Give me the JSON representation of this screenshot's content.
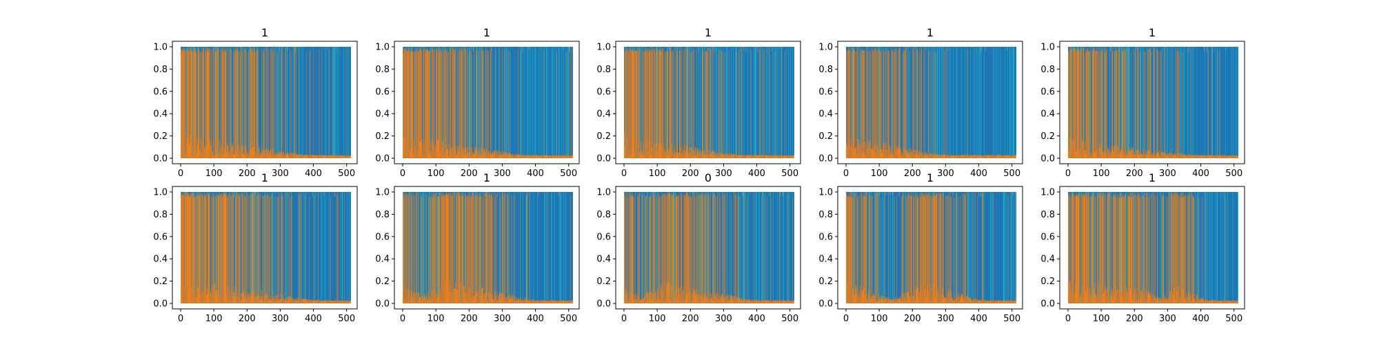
{
  "chart_data": [
    {
      "type": "area",
      "title": "1",
      "x_range": [
        0,
        511
      ],
      "ylim": [
        0,
        1
      ],
      "xticks": [
        0,
        100,
        200,
        300,
        400,
        500
      ],
      "yticks": [
        0.0,
        0.2,
        0.4,
        0.6,
        0.8,
        1.0
      ],
      "series": [
        {
          "color": "#1f77b4",
          "segments": [
            [
              0,
              0.08
            ],
            [
              370,
              0.92
            ],
            [
              511,
              0.95
            ]
          ]
        },
        {
          "color": "#ff7f0e",
          "segments": [
            [
              0,
              0.85
            ],
            [
              370,
              0.06
            ],
            [
              511,
              0.03
            ]
          ]
        }
      ]
    },
    {
      "type": "area",
      "title": "1",
      "x_range": [
        0,
        511
      ],
      "ylim": [
        0,
        1
      ],
      "xticks": [
        0,
        100,
        200,
        300,
        400,
        500
      ],
      "yticks": [
        0.0,
        0.2,
        0.4,
        0.6,
        0.8,
        1.0
      ],
      "series": [
        {
          "color": "#1f77b4",
          "segments": [
            [
              0,
              0.1
            ],
            [
              360,
              0.93
            ],
            [
              511,
              0.95
            ]
          ]
        },
        {
          "color": "#ff7f0e",
          "segments": [
            [
              0,
              0.82
            ],
            [
              360,
              0.05
            ],
            [
              511,
              0.03
            ]
          ]
        }
      ]
    },
    {
      "type": "area",
      "title": "1",
      "x_range": [
        0,
        511
      ],
      "ylim": [
        0,
        1
      ],
      "xticks": [
        0,
        100,
        200,
        300,
        400,
        500
      ],
      "yticks": [
        0.0,
        0.2,
        0.4,
        0.6,
        0.8,
        1.0
      ],
      "series": [
        {
          "color": "#1f77b4",
          "segments": [
            [
              0,
              0.12
            ],
            [
              340,
              0.92
            ],
            [
              511,
              0.95
            ]
          ]
        },
        {
          "color": "#ff7f0e",
          "segments": [
            [
              0,
              0.8
            ],
            [
              340,
              0.06
            ],
            [
              511,
              0.03
            ]
          ]
        }
      ]
    },
    {
      "type": "area",
      "title": "1",
      "x_range": [
        0,
        511
      ],
      "ylim": [
        0,
        1
      ],
      "xticks": [
        0,
        100,
        200,
        300,
        400,
        500
      ],
      "yticks": [
        0.0,
        0.2,
        0.4,
        0.6,
        0.8,
        1.0
      ],
      "series": [
        {
          "color": "#1f77b4",
          "segments": [
            [
              0,
              0.15
            ],
            [
              280,
              0.9
            ],
            [
              511,
              0.92
            ]
          ]
        },
        {
          "color": "#ff7f0e",
          "segments": [
            [
              0,
              0.78
            ],
            [
              280,
              0.06
            ],
            [
              511,
              0.05
            ]
          ]
        }
      ]
    },
    {
      "type": "area",
      "title": "1",
      "x_range": [
        0,
        511
      ],
      "ylim": [
        0,
        1
      ],
      "xticks": [
        0,
        100,
        200,
        300,
        400,
        500
      ],
      "yticks": [
        0.0,
        0.2,
        0.4,
        0.6,
        0.8,
        1.0
      ],
      "series": [
        {
          "color": "#1f77b4",
          "segments": [
            [
              0,
              0.2
            ],
            [
              100,
              0.5
            ],
            [
              380,
              0.92
            ],
            [
              511,
              0.95
            ]
          ]
        },
        {
          "color": "#ff7f0e",
          "segments": [
            [
              0,
              0.75
            ],
            [
              100,
              0.45
            ],
            [
              380,
              0.05
            ],
            [
              511,
              0.03
            ]
          ]
        }
      ]
    },
    {
      "type": "area",
      "title": "1",
      "x_range": [
        0,
        511
      ],
      "ylim": [
        0,
        1
      ],
      "xticks": [
        0,
        100,
        200,
        300,
        400,
        500
      ],
      "yticks": [
        0.0,
        0.2,
        0.4,
        0.6,
        0.8,
        1.0
      ],
      "series": [
        {
          "color": "#1f77b4",
          "segments": [
            [
              0,
              0.08
            ],
            [
              400,
              0.92
            ],
            [
              511,
              0.95
            ]
          ]
        },
        {
          "color": "#ff7f0e",
          "segments": [
            [
              0,
              0.88
            ],
            [
              400,
              0.05
            ],
            [
              511,
              0.03
            ]
          ]
        }
      ]
    },
    {
      "type": "area",
      "title": "1",
      "x_range": [
        0,
        511
      ],
      "ylim": [
        0,
        1
      ],
      "xticks": [
        0,
        100,
        200,
        300,
        400,
        500
      ],
      "yticks": [
        0.0,
        0.2,
        0.4,
        0.6,
        0.8,
        1.0
      ],
      "series": [
        {
          "color": "#1f77b4",
          "segments": [
            [
              0,
              0.25
            ],
            [
              60,
              0.7
            ],
            [
              130,
              0.15
            ],
            [
              400,
              0.93
            ],
            [
              511,
              0.95
            ]
          ]
        },
        {
          "color": "#ff7f0e",
          "segments": [
            [
              0,
              0.7
            ],
            [
              60,
              0.25
            ],
            [
              130,
              0.8
            ],
            [
              400,
              0.05
            ],
            [
              511,
              0.03
            ]
          ]
        }
      ]
    },
    {
      "type": "area",
      "title": "0",
      "x_range": [
        0,
        511
      ],
      "ylim": [
        0,
        1
      ],
      "xticks": [
        0,
        100,
        200,
        300,
        400,
        500
      ],
      "yticks": [
        0.0,
        0.2,
        0.4,
        0.6,
        0.8,
        1.0
      ],
      "series": [
        {
          "color": "#1f77b4",
          "segments": [
            [
              0,
              0.3
            ],
            [
              50,
              0.75
            ],
            [
              120,
              0.2
            ],
            [
              390,
              0.9
            ],
            [
              511,
              0.95
            ]
          ]
        },
        {
          "color": "#ff7f0e",
          "segments": [
            [
              0,
              0.65
            ],
            [
              50,
              0.2
            ],
            [
              120,
              0.75
            ],
            [
              390,
              0.06
            ],
            [
              511,
              0.03
            ]
          ]
        }
      ]
    },
    {
      "type": "area",
      "title": "1",
      "x_range": [
        0,
        511
      ],
      "ylim": [
        0,
        1
      ],
      "xticks": [
        0,
        100,
        200,
        300,
        400,
        500
      ],
      "yticks": [
        0.0,
        0.2,
        0.4,
        0.6,
        0.8,
        1.0
      ],
      "series": [
        {
          "color": "#1f77b4",
          "segments": [
            [
              0,
              0.15
            ],
            [
              140,
              0.85
            ],
            [
              240,
              0.2
            ],
            [
              400,
              0.9
            ],
            [
              511,
              0.95
            ]
          ]
        },
        {
          "color": "#ff7f0e",
          "segments": [
            [
              0,
              0.8
            ],
            [
              140,
              0.08
            ],
            [
              240,
              0.75
            ],
            [
              400,
              0.06
            ],
            [
              511,
              0.03
            ]
          ]
        }
      ]
    },
    {
      "type": "area",
      "title": "1",
      "x_range": [
        0,
        511
      ],
      "ylim": [
        0,
        1
      ],
      "xticks": [
        0,
        100,
        200,
        300,
        400,
        500
      ],
      "yticks": [
        0.0,
        0.2,
        0.4,
        0.6,
        0.8,
        1.0
      ],
      "series": [
        {
          "color": "#1f77b4",
          "segments": [
            [
              0,
              0.2
            ],
            [
              230,
              0.45
            ],
            [
              280,
              0.85
            ],
            [
              320,
              0.3
            ],
            [
              420,
              0.92
            ],
            [
              511,
              0.95
            ]
          ]
        },
        {
          "color": "#ff7f0e",
          "segments": [
            [
              0,
              0.75
            ],
            [
              230,
              0.5
            ],
            [
              280,
              0.1
            ],
            [
              320,
              0.65
            ],
            [
              420,
              0.05
            ],
            [
              511,
              0.03
            ]
          ]
        }
      ]
    }
  ]
}
